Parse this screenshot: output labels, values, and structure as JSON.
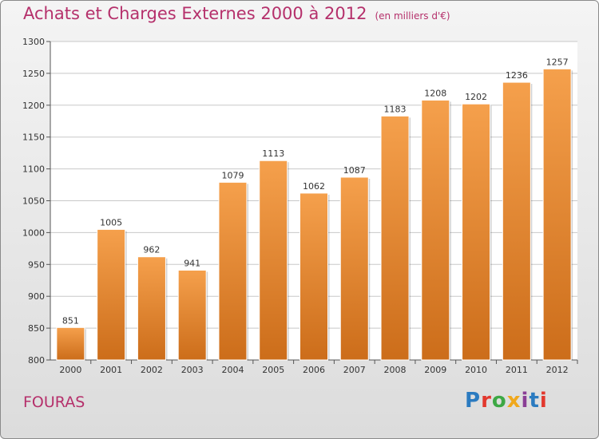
{
  "header": {
    "title": "Achats et Charges Externes 2000 à 2012",
    "subtitle": "(en milliers d'€)"
  },
  "footer": {
    "city": "FOURAS",
    "brand": "Proxiti",
    "brand_colors": [
      "#2b7bc0",
      "#e2382e",
      "#3da845",
      "#f0a81c",
      "#8a3f96",
      "#2b7bc0",
      "#e2382e"
    ]
  },
  "colors": {
    "bar_top": "#f5a04c",
    "bar_bottom": "#cc6d1a",
    "title": "#b5306b",
    "grid": "#c8c8c8"
  },
  "chart_data": {
    "type": "bar",
    "categories": [
      "2000",
      "2001",
      "2002",
      "2003",
      "2004",
      "2005",
      "2006",
      "2007",
      "2008",
      "2009",
      "2010",
      "2011",
      "2012"
    ],
    "values": [
      851,
      1005,
      962,
      941,
      1079,
      1113,
      1062,
      1087,
      1183,
      1208,
      1202,
      1236,
      1257
    ],
    "ylim": [
      800,
      1300
    ],
    "yticks": [
      800,
      850,
      900,
      950,
      1000,
      1050,
      1100,
      1150,
      1200,
      1250,
      1300
    ],
    "grid": true,
    "data_labels": true
  }
}
